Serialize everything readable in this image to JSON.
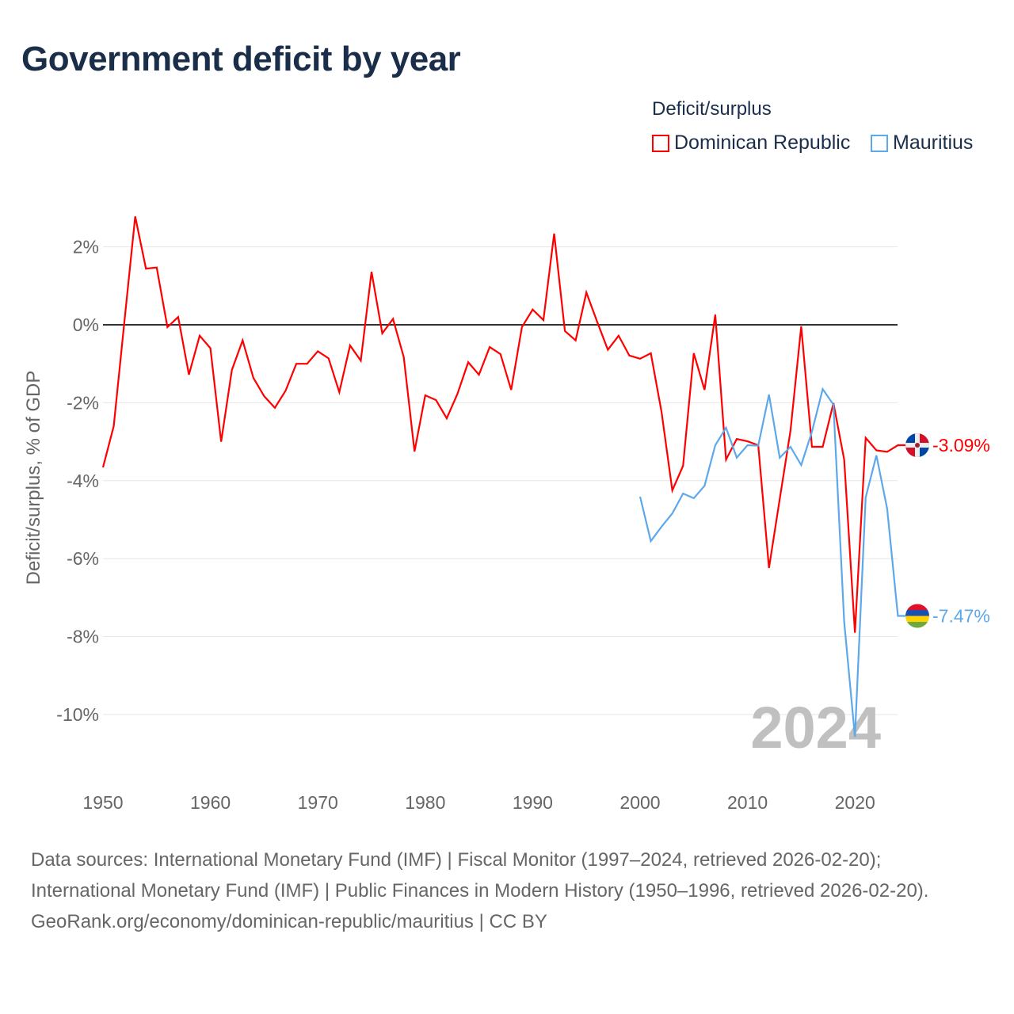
{
  "title": "Government deficit by year",
  "legend": {
    "title": "Deficit/surplus",
    "items": [
      {
        "label": "Dominican Republic",
        "color": "#ff0000"
      },
      {
        "label": "Mauritius",
        "color": "#5da8ea"
      }
    ]
  },
  "footer": {
    "sources": "Data sources: International Monetary Fund (IMF) | Fiscal Monitor (1997–2024, retrieved 2026-02-20); International Monetary Fund (IMF) | Public Finances in Modern History (1950–1996, retrieved 2026-02-20).",
    "credit": "GeoRank.org/economy/dominican-republic/mauritius | CC BY"
  },
  "chart_data": {
    "type": "line",
    "title": "Government deficit by year",
    "xlabel": "",
    "ylabel": "Deficit/surplus, % of GDP",
    "xlim": [
      1950,
      2024
    ],
    "ylim": [
      -11,
      3
    ],
    "x_ticks": [
      1950,
      1960,
      1970,
      1980,
      1990,
      2000,
      2010,
      2020
    ],
    "x_tick_labels": [
      "1950",
      "1960",
      "1970",
      "1980",
      "1990",
      "2000",
      "2010",
      "2020"
    ],
    "y_ticks": [
      2,
      0,
      -2,
      -4,
      -6,
      -8,
      -10
    ],
    "y_tick_labels": [
      "2%",
      "0%",
      "-2%",
      "-4%",
      "-6%",
      "-8%",
      "-10%"
    ],
    "year_watermark": "2024",
    "grid": true,
    "legend_position": "top-right",
    "series": [
      {
        "name": "Dominican Republic",
        "color": "#ff0000",
        "start_year": 1950,
        "end_label": "-3.09%",
        "values": [
          -3.66,
          -2.6,
          0.1,
          2.78,
          1.44,
          1.47,
          -0.06,
          0.2,
          -1.28,
          -0.28,
          -0.6,
          -3.0,
          -1.16,
          -0.4,
          -1.36,
          -1.83,
          -2.13,
          -1.69,
          -1.0,
          -1.0,
          -0.68,
          -0.86,
          -1.73,
          -0.53,
          -0.92,
          1.36,
          -0.22,
          0.15,
          -0.83,
          -3.25,
          -1.81,
          -1.93,
          -2.4,
          -1.77,
          -0.96,
          -1.28,
          -0.57,
          -0.75,
          -1.67,
          -0.06,
          0.39,
          0.12,
          2.34,
          -0.16,
          -0.4,
          0.83,
          0.08,
          -0.64,
          -0.28,
          -0.79,
          -0.87,
          -0.73,
          -2.24,
          -4.25,
          -3.62,
          -0.73,
          -1.67,
          0.26,
          -3.46,
          -2.93,
          -2.99,
          -3.09,
          -6.24,
          -4.47,
          -2.72,
          -0.04,
          -3.13,
          -3.13,
          -2.01,
          -3.46,
          -7.9,
          -2.9,
          -3.22,
          -3.26,
          -3.09
        ]
      },
      {
        "name": "Mauritius",
        "color": "#5da8ea",
        "start_year": 2000,
        "end_label": "-7.47%",
        "values": [
          -4.41,
          -5.55,
          -5.18,
          -4.84,
          -4.33,
          -4.45,
          -4.13,
          -3.09,
          -2.64,
          -3.41,
          -3.09,
          -3.1,
          -1.79,
          -3.41,
          -3.13,
          -3.6,
          -2.74,
          -1.65,
          -2.05,
          -7.62,
          -10.57,
          -4.43,
          -3.35,
          -4.72,
          -7.47
        ]
      }
    ]
  }
}
